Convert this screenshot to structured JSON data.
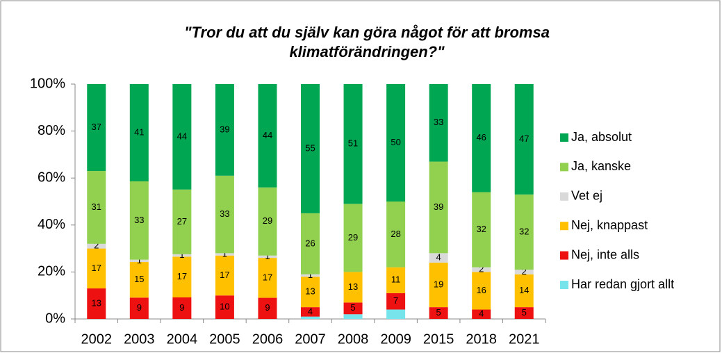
{
  "chart_data": {
    "type": "stacked_bar_percent",
    "title": [
      "\"Tror du att du själv kan göra något för att bromsa",
      "klimatförändringen?\""
    ],
    "categories": [
      "2002",
      "2003",
      "2004",
      "2005",
      "2006",
      "2007",
      "2008",
      "2009",
      "2015",
      "2018",
      "2021"
    ],
    "series": [
      {
        "name": "Har redan gjort allt",
        "color": "#77e3ea",
        "show_labels": false,
        "values": [
          0,
          0,
          0,
          0,
          0,
          1,
          2,
          4,
          0,
          0,
          0
        ]
      },
      {
        "name": "Nej, inte alls",
        "color": "#ee1111",
        "values": [
          13,
          9,
          9,
          10,
          9,
          4,
          5,
          7,
          5,
          4,
          5
        ]
      },
      {
        "name": "Nej, knappast",
        "color": "#ffc000",
        "values": [
          17,
          15,
          17,
          17,
          17,
          13,
          13,
          11,
          19,
          16,
          14
        ]
      },
      {
        "name": "Vet ej",
        "color": "#d9d9d9",
        "values": [
          2,
          1,
          1,
          1,
          1,
          1,
          0,
          0,
          4,
          2,
          2
        ]
      },
      {
        "name": "Ja, kanske",
        "color": "#92d050",
        "values": [
          31,
          33,
          27,
          33,
          29,
          26,
          29,
          28,
          39,
          32,
          32
        ]
      },
      {
        "name": "Ja, absolut",
        "color": "#00a651",
        "values": [
          37,
          41,
          44,
          39,
          44,
          55,
          51,
          50,
          33,
          46,
          47
        ]
      }
    ],
    "ylim": [
      0,
      100
    ],
    "yticks": [
      {
        "value": 0,
        "label": "0%"
      },
      {
        "value": 20,
        "label": "20%"
      },
      {
        "value": 40,
        "label": "40%"
      },
      {
        "value": 60,
        "label": "60%"
      },
      {
        "value": 80,
        "label": "80%"
      },
      {
        "value": 100,
        "label": "100%"
      }
    ],
    "legend": "right"
  }
}
